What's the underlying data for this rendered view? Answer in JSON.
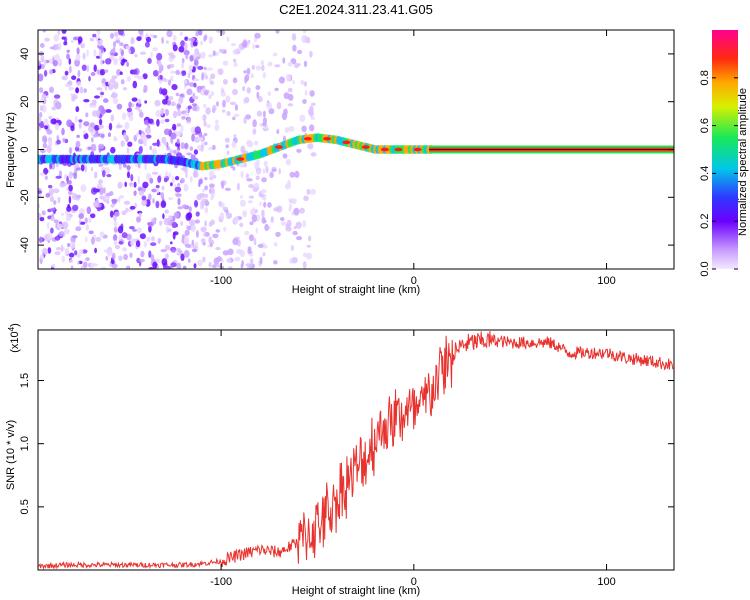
{
  "title": "C2E1.2024.311.23.41.G05",
  "chart_data": [
    {
      "type": "heatmap",
      "name": "spectrogram",
      "xlabel": "Height of straight line (km)",
      "ylabel": "Frequency (Hz)",
      "xlim": [
        -195,
        135
      ],
      "ylim": [
        -50,
        50
      ],
      "xticks": [
        -100,
        0,
        100
      ],
      "xtick_labels": [
        "-100",
        "0",
        "100"
      ],
      "yticks": [
        -40,
        -20,
        0,
        20,
        40
      ],
      "ytick_labels": [
        "-40",
        "-20",
        "0",
        "20",
        "40"
      ],
      "ridge": {
        "x": [
          -195,
          -170,
          -150,
          -130,
          -120,
          -110,
          -100,
          -90,
          -80,
          -70,
          -60,
          -50,
          -40,
          -30,
          -20,
          -10,
          0,
          10,
          50,
          100,
          135
        ],
        "y": [
          -4,
          -4,
          -4,
          -4,
          -5,
          -7,
          -6,
          -4,
          -2,
          1,
          4,
          5,
          4,
          2,
          0,
          0,
          0,
          0,
          0,
          0,
          0
        ]
      },
      "colorbar": {
        "label": "Normalized spectral amplitude",
        "range": [
          0.0,
          1.0
        ],
        "ticks": [
          0.0,
          0.2,
          0.4,
          0.6,
          0.8
        ],
        "tick_labels": [
          "0.0",
          "0.2",
          "0.4",
          "0.6",
          "0.8"
        ]
      }
    },
    {
      "type": "line",
      "name": "snr",
      "xlabel": "Height of straight line (km)",
      "ylabel": "SNR (10 * v/v)",
      "scale_label": "(x10",
      "scale_exp": "4",
      "scale_close": ")",
      "xlim": [
        -195,
        135
      ],
      "ylim": [
        0,
        1.9
      ],
      "xticks": [
        -100,
        0,
        100
      ],
      "xtick_labels": [
        "-100",
        "0",
        "100"
      ],
      "yticks": [
        0.5,
        1.0,
        1.5
      ],
      "ytick_labels": [
        "0.5",
        "1.0",
        "1.5"
      ],
      "color": "#e8322e",
      "series": [
        {
          "name": "SNR",
          "x": [
            -195,
            -180,
            -160,
            -140,
            -120,
            -110,
            -100,
            -90,
            -80,
            -70,
            -60,
            -50,
            -40,
            -35,
            -30,
            -25,
            -20,
            -15,
            -10,
            -5,
            0,
            5,
            10,
            15,
            20,
            25,
            30,
            40,
            50,
            60,
            70,
            75,
            80,
            90,
            100,
            110,
            120,
            135
          ],
          "y": [
            0.03,
            0.04,
            0.04,
            0.04,
            0.04,
            0.05,
            0.07,
            0.12,
            0.16,
            0.14,
            0.22,
            0.35,
            0.55,
            0.7,
            0.78,
            0.88,
            1.05,
            1.15,
            1.2,
            1.25,
            1.22,
            1.3,
            1.45,
            1.6,
            1.7,
            1.78,
            1.8,
            1.82,
            1.8,
            1.8,
            1.8,
            1.77,
            1.72,
            1.72,
            1.72,
            1.68,
            1.66,
            1.62
          ]
        }
      ]
    }
  ]
}
